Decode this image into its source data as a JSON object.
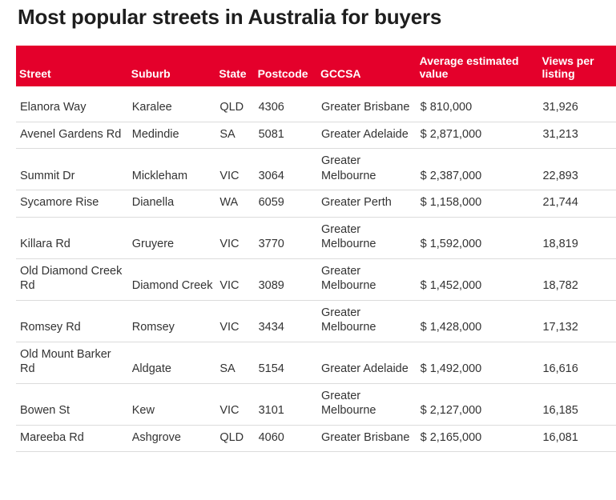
{
  "title": "Most popular streets in Australia for buyers",
  "headers": {
    "street": "Street",
    "suburb": "Suburb",
    "state": "State",
    "postcode": "Postcode",
    "gccsa": "GCCSA",
    "avg_value": "Average estimated value",
    "views": "Views per listing"
  },
  "rows": [
    {
      "street": "Elanora Way",
      "suburb": "Karalee",
      "state": "QLD",
      "postcode": "4306",
      "gccsa": "Greater Brisbane",
      "avg_value": "$ 810,000",
      "views": "31,926"
    },
    {
      "street": "Avenel Gardens Rd",
      "suburb": "Medindie",
      "state": "SA",
      "postcode": "5081",
      "gccsa": "Greater Adelaide",
      "avg_value": "$ 2,871,000",
      "views": "31,213"
    },
    {
      "street": "Summit Dr",
      "suburb": "Mickleham",
      "state": "VIC",
      "postcode": "3064",
      "gccsa": "Greater Melbourne",
      "avg_value": "$ 2,387,000",
      "views": "22,893"
    },
    {
      "street": "Sycamore Rise",
      "suburb": "Dianella",
      "state": "WA",
      "postcode": "6059",
      "gccsa": "Greater Perth",
      "avg_value": "$ 1,158,000",
      "views": "21,744"
    },
    {
      "street": "Killara Rd",
      "suburb": "Gruyere",
      "state": "VIC",
      "postcode": "3770",
      "gccsa": "Greater Melbourne",
      "avg_value": "$ 1,592,000",
      "views": "18,819"
    },
    {
      "street": "Old Diamond Creek Rd",
      "suburb": "Diamond Creek",
      "state": "VIC",
      "postcode": "3089",
      "gccsa": "Greater Melbourne",
      "avg_value": "$ 1,452,000",
      "views": "18,782"
    },
    {
      "street": "Romsey Rd",
      "suburb": "Romsey",
      "state": "VIC",
      "postcode": "3434",
      "gccsa": "Greater Melbourne",
      "avg_value": "$ 1,428,000",
      "views": "17,132"
    },
    {
      "street": "Old Mount Barker Rd",
      "suburb": "Aldgate",
      "state": "SA",
      "postcode": "5154",
      "gccsa": "Greater Adelaide",
      "avg_value": "$ 1,492,000",
      "views": "16,616"
    },
    {
      "street": "Bowen St",
      "suburb": "Kew",
      "state": "VIC",
      "postcode": "3101",
      "gccsa": "Greater Melbourne",
      "avg_value": "$ 2,127,000",
      "views": "16,185"
    },
    {
      "street": "Mareeba Rd",
      "suburb": "Ashgrove",
      "state": "QLD",
      "postcode": "4060",
      "gccsa": "Greater Brisbane",
      "avg_value": "$ 2,165,000",
      "views": "16,081"
    }
  ],
  "colors": {
    "header_bg": "#e4002b",
    "header_text": "#ffffff",
    "row_divider": "#dcdcdc"
  }
}
